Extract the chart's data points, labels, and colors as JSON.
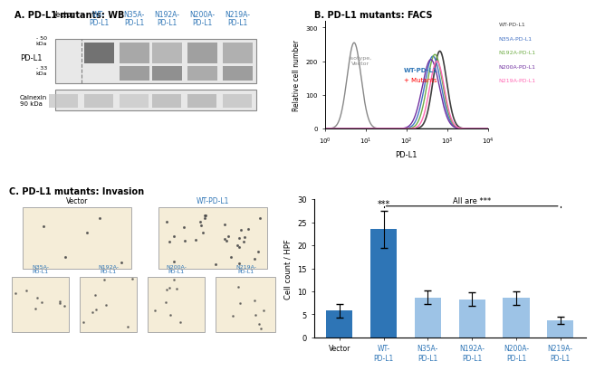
{
  "title_A": "A. PD-L1 mutants: WB",
  "title_B": "B. PD-L1 mutants: FACS",
  "title_C": "C. PD-L1 mutants: Invasion",
  "bar_categories": [
    "Vector",
    "WT-\nPD-L1",
    "N35A-\nPD-L1",
    "N192A-\nPD-L1",
    "N200A-\nPD-L1",
    "N219A-\nPD-L1"
  ],
  "bar_values": [
    5.8,
    23.5,
    8.7,
    8.3,
    8.6,
    3.8
  ],
  "bar_errors": [
    1.5,
    4.0,
    1.5,
    1.5,
    1.5,
    0.8
  ],
  "bar_colors": [
    "#2E75B6",
    "#2E75B6",
    "#9DC3E6",
    "#9DC3E6",
    "#9DC3E6",
    "#9DC3E6"
  ],
  "bar_xlabel_colors": [
    "black",
    "#2E75B6",
    "#2E75B6",
    "#2E75B6",
    "#2E75B6",
    "#2E75B6"
  ],
  "ylabel_bar": "Cell count / HPF",
  "facs_legend": [
    "WT-PD-L1",
    "N35A-PD-L1",
    "N192A-PD-L1",
    "N200A-PD-L1",
    "N219A-PD-L1"
  ],
  "facs_legend_colors": [
    "#404040",
    "#4472C4",
    "#70AD47",
    "#7030A0",
    "#FF69B4"
  ],
  "facs_ylabel": "Relative cell number",
  "facs_xlabel": "PD-L1",
  "wb_columns": [
    "Vector",
    "WT-",
    "N35A-",
    "N192A-",
    "N200A-",
    "N219A-"
  ],
  "wb_columns2": [
    "",
    "PD-L1",
    "PD-L1",
    "PD-L1",
    "PD-L1",
    "PD-L1"
  ],
  "wb_col_colors": [
    "black",
    "#2E75B6",
    "#2E75B6",
    "#2E75B6",
    "#2E75B6",
    "#2E75B6"
  ],
  "all_are_star_label": "All are ***",
  "wt_star_label": "***"
}
